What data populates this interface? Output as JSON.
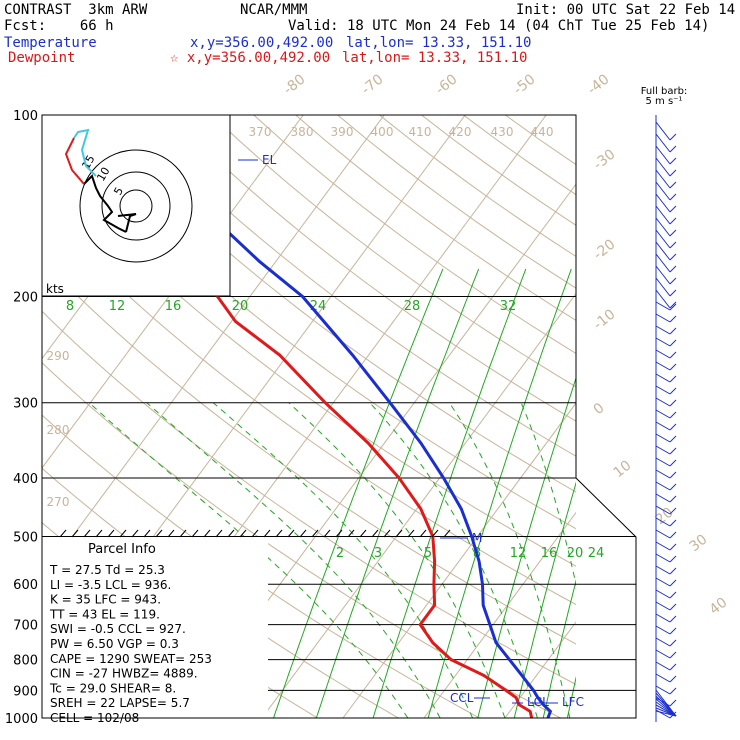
{
  "header": {
    "model": "CONTRAST  3km ARW",
    "forecast": "Fcst:    66 h",
    "center": "NCAR/MMM",
    "init": "Init: 00 UTC Sat 22 Feb 14",
    "valid": "Valid: 18 UTC Mon 24 Feb 14 (04 ChT Tue 25 Feb 14)",
    "temp_label": "Temperature",
    "temp_xy": "x,y=356.00,492.00",
    "temp_latlon": "lat,lon= 13.33, 151.10",
    "dew_label": "Dewpoint",
    "dew_xy": "☆ x,y=356.00,492.00",
    "dew_latlon": "lat,lon= 13.33, 151.10"
  },
  "barb_header": {
    "line1": "Full barb:",
    "line2": "5 m s⁻¹"
  },
  "colors": {
    "temperature": "#1b2fd0",
    "dewpoint": "#e01a1a",
    "isotherm": "#c8b49a",
    "mixing": "#22a822",
    "theta": "#c8b49a"
  },
  "chart_data": {
    "type": "line",
    "title": "",
    "xlabel": "",
    "ylabel": "",
    "y_axis_scale": "log-pressure",
    "ylim": [
      1000,
      100
    ],
    "pressure_ticks": [
      "100",
      "200",
      "300",
      "400",
      "500",
      "600",
      "700",
      "800",
      "900",
      "1000"
    ],
    "isotherm_labels": [
      "-80",
      "-70",
      "-60",
      "-50",
      "-40",
      "-30",
      "-20",
      "-10",
      "0",
      "10",
      "20",
      "30",
      "40"
    ],
    "theta_labels": [
      "370",
      "380",
      "390",
      "400",
      "410",
      "420",
      "430",
      "440",
      "290",
      "280",
      "270"
    ],
    "mixing_ratio_labels_upper": [
      "8",
      "12",
      "16",
      "20",
      "24",
      "28",
      "32"
    ],
    "mixing_ratio_labels_lower": [
      "2",
      "3",
      "5",
      "8",
      "12",
      "16",
      "20",
      "24"
    ],
    "series": [
      {
        "name": "Temperature",
        "values": [
          [
            1000,
            25.3
          ],
          [
            975,
            25.0
          ],
          [
            950,
            23.5
          ],
          [
            925,
            22.2
          ],
          [
            900,
            21.0
          ],
          [
            850,
            18.2
          ],
          [
            800,
            15.2
          ],
          [
            750,
            12.0
          ],
          [
            700,
            9.6
          ],
          [
            650,
            7.0
          ],
          [
            600,
            5.0
          ],
          [
            550,
            2.5
          ],
          [
            500,
            -0.7
          ],
          [
            450,
            -4.5
          ],
          [
            400,
            -9.5
          ],
          [
            350,
            -15.5
          ],
          [
            300,
            -23.0
          ],
          [
            250,
            -32.0
          ],
          [
            200,
            -43.5
          ],
          [
            175,
            -52.0
          ],
          [
            150,
            -61.0
          ],
          [
            125,
            -73.0
          ],
          [
            110,
            -79.5
          ],
          [
            100,
            -81.0
          ]
        ]
      },
      {
        "name": "Dewpoint",
        "values": [
          [
            1000,
            23.3
          ],
          [
            975,
            22.5
          ],
          [
            950,
            20.5
          ],
          [
            925,
            19.5
          ],
          [
            900,
            17.6
          ],
          [
            850,
            13.5
          ],
          [
            800,
            8.0
          ],
          [
            750,
            4.2
          ],
          [
            700,
            1.0
          ],
          [
            650,
            1.0
          ],
          [
            600,
            -1.0
          ],
          [
            550,
            -3.0
          ],
          [
            500,
            -5.5
          ],
          [
            450,
            -9.5
          ],
          [
            400,
            -15.0
          ],
          [
            350,
            -22.0
          ],
          [
            300,
            -31.0
          ],
          [
            250,
            -41.0
          ],
          [
            220,
            -49.5
          ],
          [
            200,
            -54.0
          ],
          [
            175,
            -62.0
          ],
          [
            150,
            -72.0
          ],
          [
            125,
            -83.0
          ],
          [
            110,
            -86.0
          ],
          [
            100,
            -84.0
          ]
        ]
      }
    ],
    "level_markers": [
      "EL",
      "M",
      "CCL",
      "LCL",
      "LFC"
    ]
  },
  "parcel_info": {
    "title": "Parcel Info",
    "rows": [
      "T  =   27.5  Td =  25.3",
      "LI =   -3.5  LCL =  936.",
      "K  =     35  LFC =  943.",
      "TT =     43  EL  =  119.",
      "SWI =   -0.5  CCL =  927.",
      "PW =   6.50  VGP =   0.3",
      "CAPE =  1290  SWEAT=  253",
      "CIN =    -27  HWBZ= 4889.",
      "Tc =   29.0  SHEAR=   8.",
      "SREH =    22  LAPSE=   5.7",
      "CELL = 102/08"
    ]
  },
  "hodograph": {
    "unit_label": "kts",
    "ring_labels": [
      "15",
      "10",
      "5"
    ]
  }
}
